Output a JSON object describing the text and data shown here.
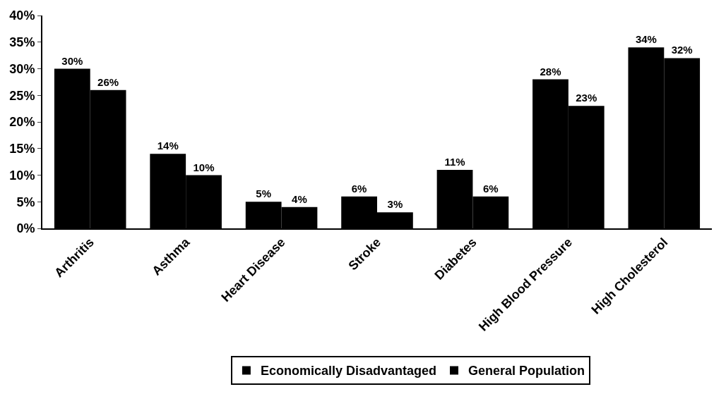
{
  "chart_data": {
    "type": "bar",
    "categories": [
      "Arthritis",
      "Asthma",
      "Heart Disease",
      "Stroke",
      "Diabetes",
      "High Blood Pressure",
      "High Cholesterol"
    ],
    "series": [
      {
        "name": "Economically Disadvantaged",
        "color": "#000000",
        "values": [
          30,
          14,
          5,
          6,
          11,
          28,
          34
        ],
        "value_labels": [
          "30%",
          "14%",
          "5%",
          "6%",
          "11%",
          "28%",
          "34%"
        ]
      },
      {
        "name": "General Population",
        "color": "#000000",
        "values": [
          26,
          10,
          4,
          3,
          6,
          23,
          32
        ],
        "value_labels": [
          "26%",
          "10%",
          "4%",
          "3%",
          "6%",
          "23%",
          "32%"
        ]
      }
    ],
    "ylim": [
      0,
      40
    ],
    "yticks": [
      {
        "value": 0,
        "label": "0%"
      },
      {
        "value": 5,
        "label": "5%"
      },
      {
        "value": 10,
        "label": "10%"
      },
      {
        "value": 15,
        "label": "15%"
      },
      {
        "value": 20,
        "label": "20%"
      },
      {
        "value": 25,
        "label": "25%"
      },
      {
        "value": 30,
        "label": "30%"
      },
      {
        "value": 35,
        "label": "35%"
      },
      {
        "value": 40,
        "label": "40%"
      }
    ],
    "legend": "bottom"
  }
}
